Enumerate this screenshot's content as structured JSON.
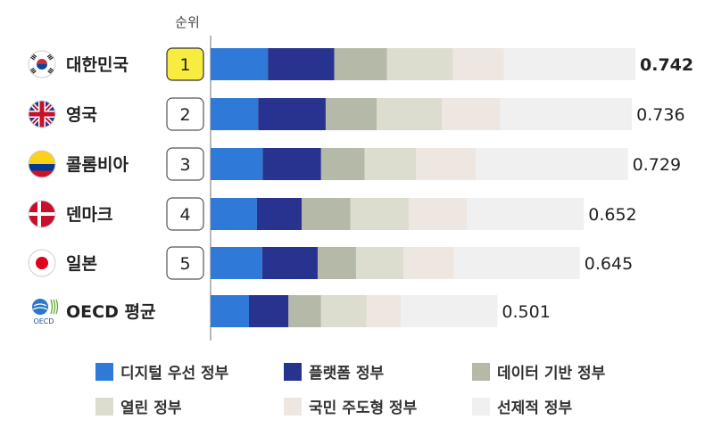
{
  "chart_data": {
    "type": "bar",
    "orientation": "horizontal",
    "stacked": true,
    "rank_header": "순위",
    "categories": [
      "대한민국",
      "영국",
      "콜롬비아",
      "덴마크",
      "일본",
      "OECD 평균"
    ],
    "ranks": [
      "1",
      "2",
      "3",
      "4",
      "5",
      ""
    ],
    "totals": [
      "0.742",
      "0.736",
      "0.729",
      "0.652",
      "0.645",
      "0.501"
    ],
    "highlight_index": 0,
    "flags": [
      "korea-flag",
      "uk-flag",
      "colombia-flag",
      "denmark-flag",
      "japan-flag",
      "oecd-logo"
    ],
    "oecd_logo_text": "OECD",
    "series": [
      {
        "name": "디지털 우선 정부",
        "color": "#2f7ad8",
        "values": [
          0.1,
          0.083,
          0.091,
          0.081,
          0.09,
          0.067
        ]
      },
      {
        "name": "플랫폼 정부",
        "color": "#27338f",
        "values": [
          0.116,
          0.118,
          0.102,
          0.078,
          0.097,
          0.069
        ]
      },
      {
        "name": "데이터 기반 정부",
        "color": "#b4b9a8",
        "values": [
          0.092,
          0.089,
          0.076,
          0.085,
          0.067,
          0.057
        ]
      },
      {
        "name": "열린 정부",
        "color": "#dcdccf",
        "values": [
          0.115,
          0.114,
          0.09,
          0.102,
          0.083,
          0.079
        ]
      },
      {
        "name": "국민 주도형 정부",
        "color": "#ede6e1",
        "values": [
          0.089,
          0.102,
          0.104,
          0.102,
          0.088,
          0.06
        ]
      },
      {
        "name": "선제적 정부",
        "color": "#f0f0f0",
        "values": [
          0.23,
          0.23,
          0.266,
          0.204,
          0.22,
          0.169
        ]
      }
    ],
    "xlim": [
      0,
      0.742
    ],
    "legend_position": "bottom",
    "grid": false
  }
}
